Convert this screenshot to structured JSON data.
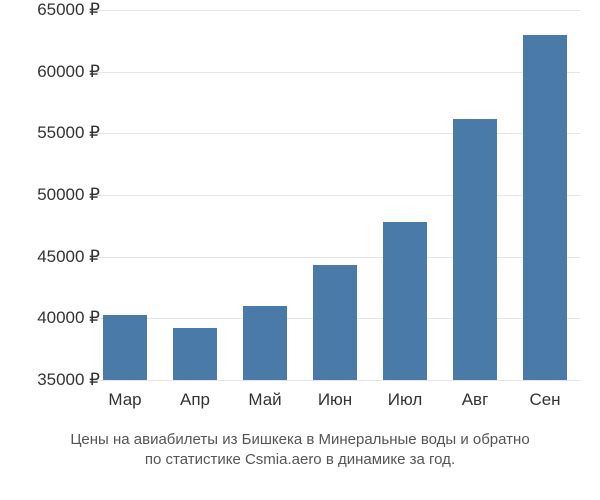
{
  "chart": {
    "type": "bar",
    "categories": [
      "Мар",
      "Апр",
      "Май",
      "Июн",
      "Июл",
      "Авг",
      "Сен"
    ],
    "values": [
      40300,
      39200,
      41000,
      44300,
      47800,
      56200,
      63000
    ],
    "bar_color": "#4a7aa8",
    "background_color": "#ffffff",
    "grid_color": "#e6e6e6",
    "text_color": "#333333",
    "caption_color": "#555555",
    "ymin": 35000,
    "ymax": 65000,
    "ytick_step": 5000,
    "ytick_suffix": " ₽",
    "bar_width_ratio": 0.62,
    "axis_fontsize": 17,
    "caption_fontsize": 15
  },
  "caption": {
    "line1": "Цены на авиабилеты из Бишкека в Минеральные воды и обратно",
    "line2": "по статистике Csmia.aero в динамике за год."
  }
}
